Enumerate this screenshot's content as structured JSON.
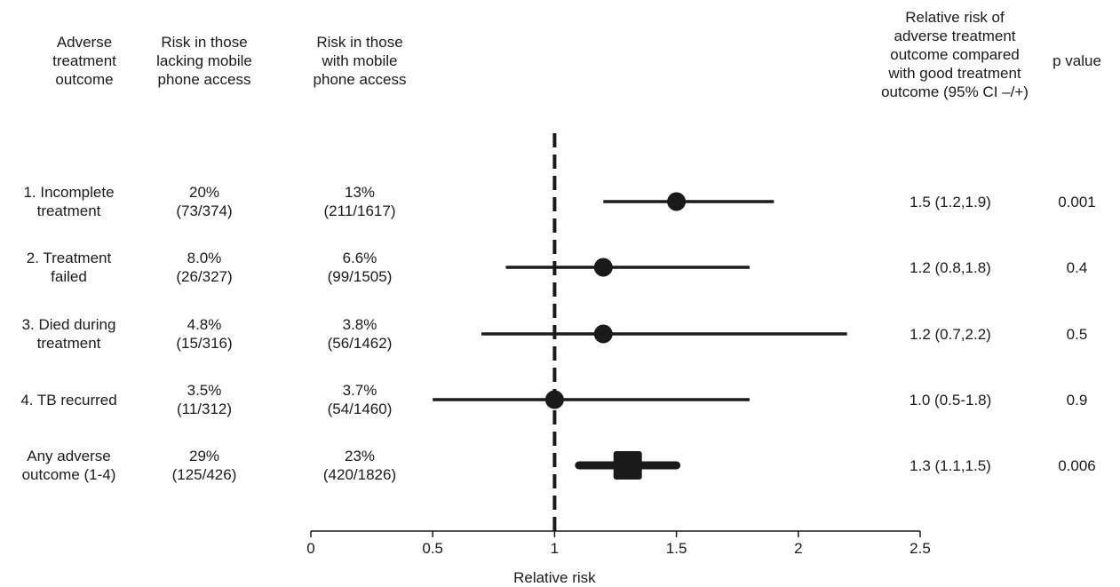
{
  "headers": {
    "outcome": "Adverse\ntreatment\noutcome",
    "lacking": "Risk in those\nlacking mobile\nphone access",
    "with": "Risk in those\nwith mobile\nphone access",
    "rr": "Relative risk of\nadverse treatment\noutcome compared\nwith good treatment\noutcome (95% CI –/+)",
    "p": "p value"
  },
  "rows": [
    {
      "outcome": "1. Incomplete\ntreatment",
      "lacking": "20%\n(73/374)",
      "with": "13%\n(211/1617)",
      "rr": "1.5 (1.2,1.9)",
      "p": "0.001"
    },
    {
      "outcome": "2. Treatment\nfailed",
      "lacking": "8.0%\n(26/327)",
      "with": "6.6%\n(99/1505)",
      "rr": "1.2 (0.8,1.8)",
      "p": "0.4"
    },
    {
      "outcome": "3. Died during\ntreatment",
      "lacking": "4.8%\n(15/316)",
      "with": "3.8%\n(56/1462)",
      "rr": "1.2 (0.7,2.2)",
      "p": "0.5"
    },
    {
      "outcome": "4. TB recurred",
      "lacking": "3.5%\n(11/312)",
      "with": "3.7%\n(54/1460)",
      "rr": "1.0 (0.5-1.8)",
      "p": "0.9"
    },
    {
      "outcome": "Any adverse\noutcome (1-4)",
      "lacking": "29%\n(125/426)",
      "with": "23%\n(420/1826)",
      "rr": "1.3 (1.1,1.5)",
      "p": "0.006"
    }
  ],
  "chart_data": {
    "type": "scatter",
    "subtype": "forest_plot",
    "xlabel": "Relative risk",
    "xlim": [
      0,
      2.5
    ],
    "xticks": [
      0,
      0.5,
      1,
      1.5,
      2,
      2.5
    ],
    "xtick_labels": [
      "0",
      "0.5",
      "1",
      "1.5",
      "2",
      "2.5"
    ],
    "reference_line": 1,
    "points": [
      {
        "estimate": 1.5,
        "lower": 1.2,
        "upper": 1.9,
        "marker": "circle"
      },
      {
        "estimate": 1.2,
        "lower": 0.8,
        "upper": 1.8,
        "marker": "circle"
      },
      {
        "estimate": 1.2,
        "lower": 0.7,
        "upper": 2.2,
        "marker": "circle"
      },
      {
        "estimate": 1.0,
        "lower": 0.5,
        "upper": 1.8,
        "marker": "circle"
      },
      {
        "estimate": 1.3,
        "lower": 1.1,
        "upper": 1.5,
        "marker": "square"
      }
    ],
    "colors": {
      "ink": "#1a1a1a"
    }
  }
}
